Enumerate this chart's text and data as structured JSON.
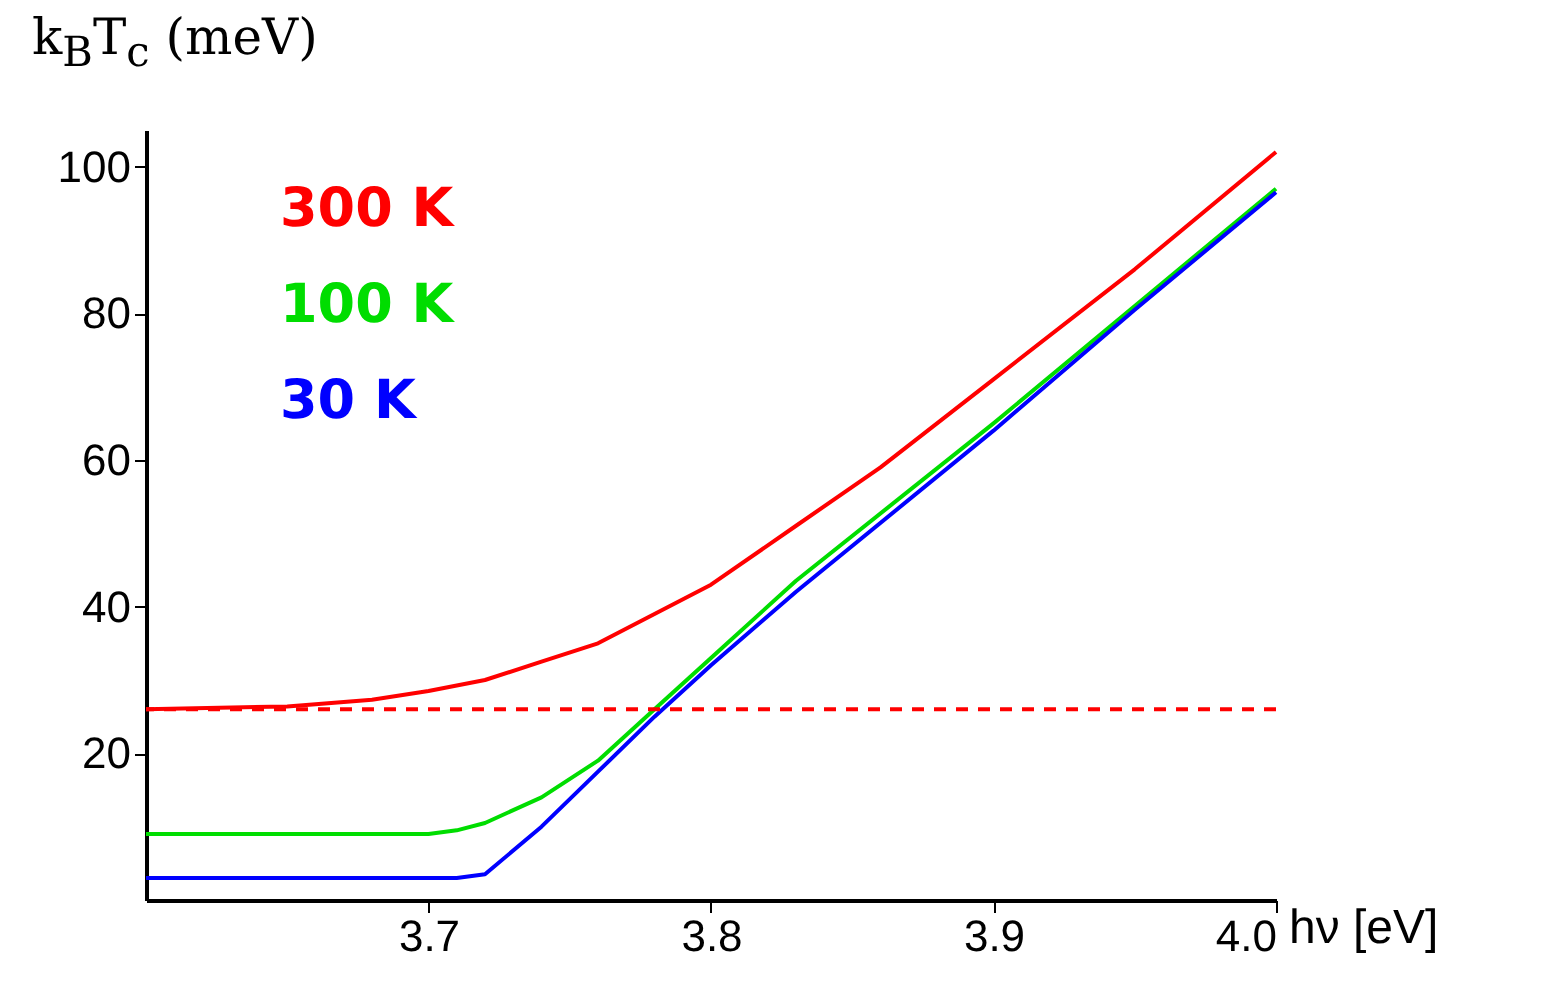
{
  "chart_data": {
    "type": "line",
    "ylabel": "k$_{B}$T$_{c}$ (meV)",
    "xlabel": "hν [eV]",
    "xlim": [
      3.6,
      4.0
    ],
    "xticks": [
      3.7,
      3.8,
      3.9,
      {
        "value": 4.0,
        "label": "4.0"
      }
    ],
    "ylim": [
      0,
      105
    ],
    "yticks": [
      20,
      40,
      60,
      80,
      100
    ],
    "grid": false,
    "legend": "top left",
    "line_style": "solid",
    "series": [
      {
        "name": "300 K",
        "color": "#ff0000",
        "x": [
          3.6,
          3.65,
          3.68,
          3.7,
          3.72,
          3.74,
          3.76,
          3.78,
          3.8,
          3.83,
          3.86,
          3.9,
          3.95,
          4.0
        ],
        "values": [
          26,
          26.4,
          27.3,
          28.5,
          30,
          32.5,
          35,
          39,
          43,
          51,
          59,
          71,
          86,
          102
        ]
      },
      {
        "name": "100 K",
        "color": "#00dd00",
        "x": [
          3.6,
          3.7,
          3.71,
          3.72,
          3.74,
          3.76,
          3.78,
          3.8,
          3.83,
          3.9,
          3.95,
          4.0
        ],
        "values": [
          9,
          9,
          9.5,
          10.5,
          14,
          19,
          26,
          33,
          43.5,
          65,
          81,
          97
        ]
      },
      {
        "name": "30 K",
        "color": "#0000ff",
        "x": [
          3.6,
          3.71,
          3.72,
          3.74,
          3.76,
          3.78,
          3.8,
          3.83,
          3.9,
          3.95,
          4.0
        ],
        "values": [
          3,
          3,
          3.5,
          10,
          17.5,
          25,
          32,
          42,
          64,
          80.5,
          96.5
        ]
      }
    ],
    "ref_lines": [
      {
        "axis": "y",
        "value": 26,
        "color": "#ff0000",
        "line_style": "dashed"
      }
    ]
  }
}
